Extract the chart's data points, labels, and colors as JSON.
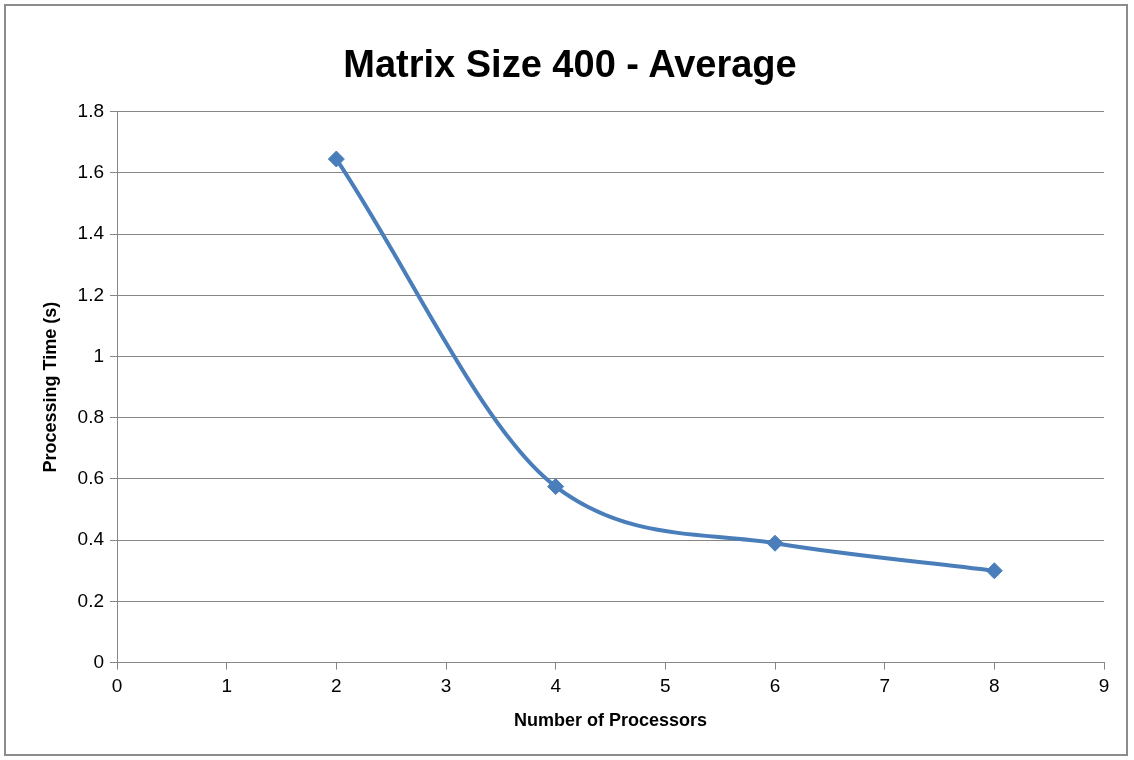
{
  "chart_data": {
    "type": "line",
    "title": "Matrix Size 400 - Average",
    "xlabel": "Number of Processors",
    "ylabel": "Processing Time (s)",
    "x": [
      2,
      4,
      6,
      8
    ],
    "series": [
      {
        "color": "#4a7ebb",
        "values": [
          1.645,
          0.575,
          0.39,
          0.3
        ]
      }
    ],
    "xlim": [
      0,
      9
    ],
    "xticks": [
      0,
      1,
      2,
      3,
      4,
      5,
      6,
      7,
      8,
      9
    ],
    "ylim": [
      0,
      1.8
    ],
    "yticks": [
      0,
      0.2,
      0.4,
      0.6,
      0.8,
      1,
      1.2,
      1.4,
      1.6,
      1.8
    ],
    "grid": "y",
    "legend": false,
    "marker": "diamond",
    "line_style": "solid"
  }
}
